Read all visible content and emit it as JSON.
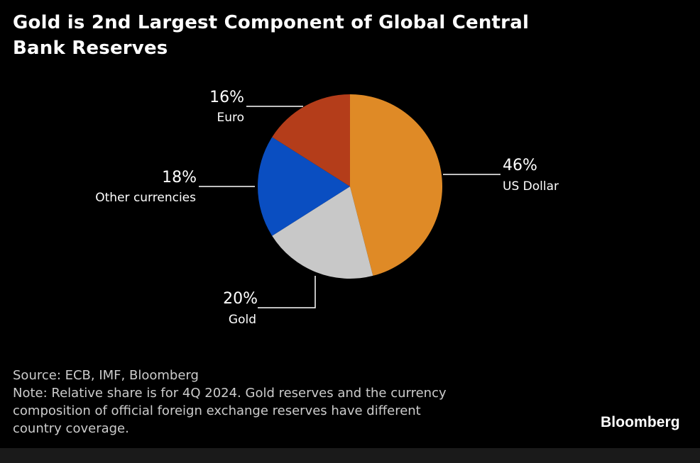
{
  "chart_data": {
    "type": "pie",
    "title": "Gold is 2nd Largest Component of Global Central Bank Reserves",
    "slices": [
      {
        "label": "US Dollar",
        "value": 46,
        "value_label": "46%",
        "color": "#df8a26"
      },
      {
        "label": "Gold",
        "value": 20,
        "value_label": "20%",
        "color": "#c8c8c8"
      },
      {
        "label": "Other currencies",
        "value": 18,
        "value_label": "18%",
        "color": "#0a4ec1"
      },
      {
        "label": "Euro",
        "value": 16,
        "value_label": "16%",
        "color": "#b43d1a"
      }
    ]
  },
  "footer": {
    "source": "Source: ECB, IMF, Bloomberg",
    "note_line1": "Note: Relative share is for 4Q 2024. Gold reserves and the currency",
    "note_line2": "composition of official foreign exchange reserves have different",
    "note_line3": "country coverage."
  },
  "brand": {
    "logo_text": "Bloomberg"
  },
  "colors": {
    "background": "#000000",
    "text": "#ffffff",
    "footer_text": "#cccccc",
    "leader_line": "#ffffff"
  }
}
